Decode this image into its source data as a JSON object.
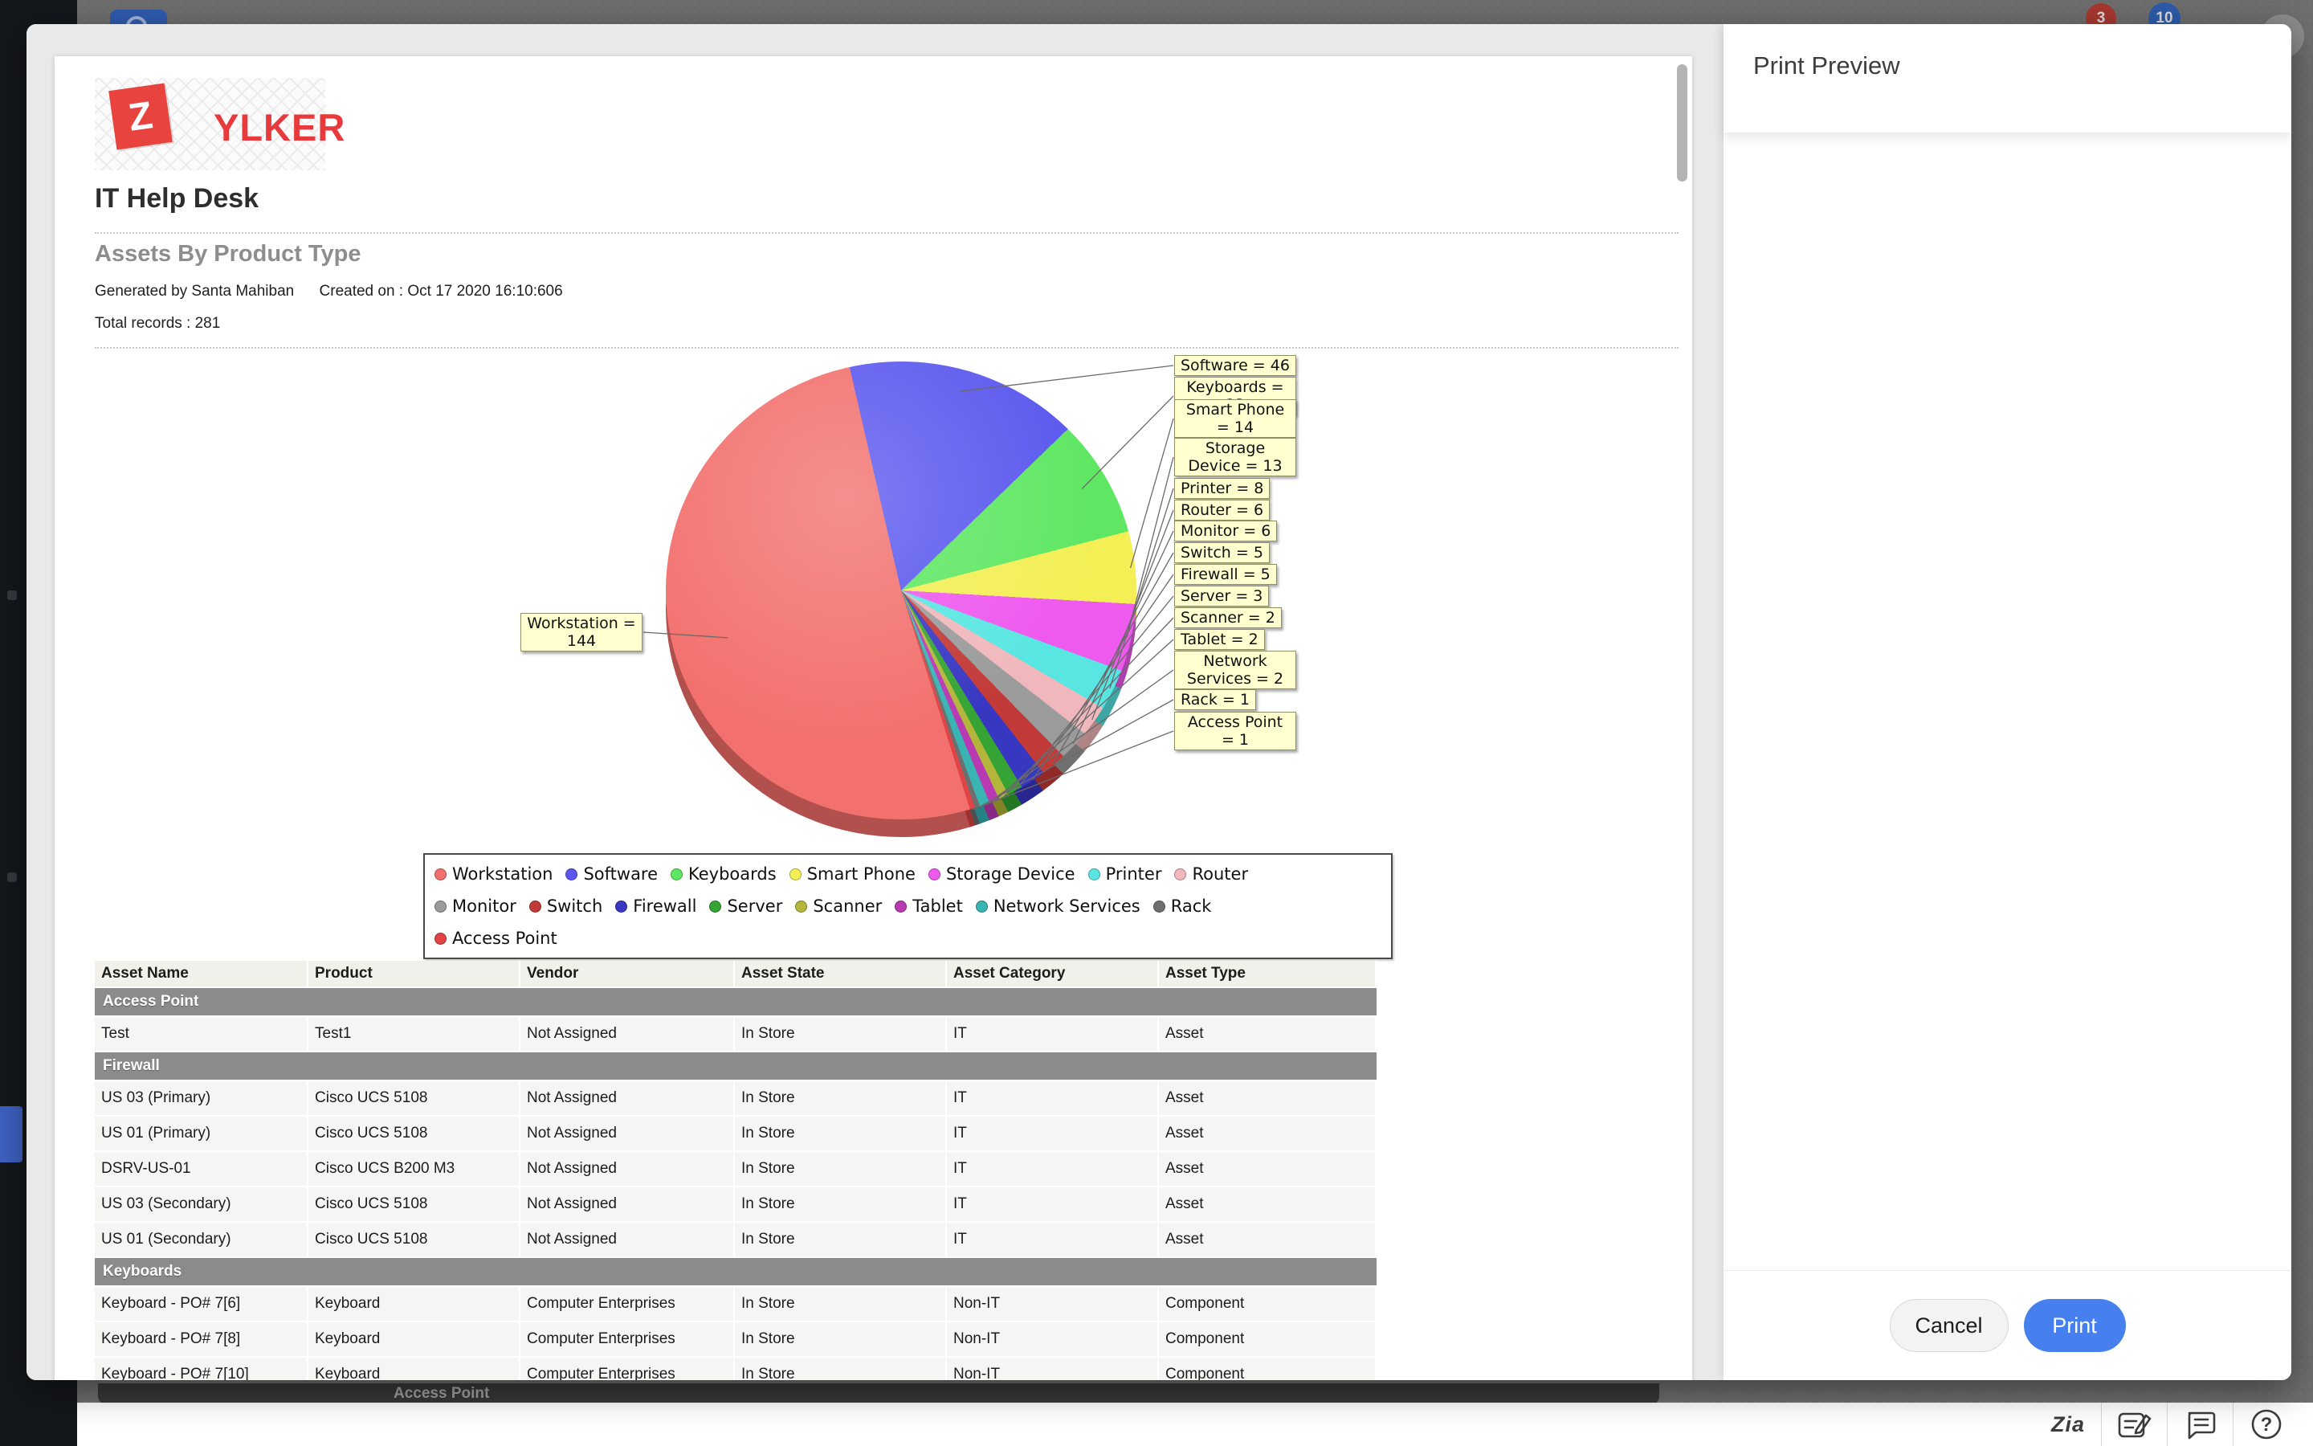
{
  "overlay": {
    "badge_red": "3",
    "badge_blue": "10",
    "sticky_group_header": "Access Point"
  },
  "print_panel": {
    "title": "Print Preview",
    "cancel_label": "Cancel",
    "print_label": "Print",
    "accent_color": "#4580ee"
  },
  "document": {
    "brand_letter": "Z",
    "brand_name": "YLKER",
    "app_title": "IT Help Desk",
    "report_title": "Assets By Product Type",
    "generated_by": "Generated by Santa Mahiban",
    "created_on": "Created on : Oct 17 2020 16:10:606",
    "total_records": "Total records : 281"
  },
  "chart_data": {
    "type": "pie",
    "title": "Assets By Product Type",
    "total": 281,
    "legend_position": "bottom-box",
    "start_angle_deg": -13,
    "series": [
      {
        "label": "Workstation",
        "value": 144,
        "color": "#f2706d"
      },
      {
        "label": "Software",
        "value": 46,
        "color": "#5a58ee"
      },
      {
        "label": "Keyboards",
        "value": 23,
        "color": "#5fe763"
      },
      {
        "label": "Smart Phone",
        "value": 14,
        "color": "#f3ef55"
      },
      {
        "label": "Storage Device",
        "value": 13,
        "color": "#ee59ee"
      },
      {
        "label": "Printer",
        "value": 8,
        "color": "#59e6e2"
      },
      {
        "label": "Router",
        "value": 6,
        "color": "#f0b8bc"
      },
      {
        "label": "Monitor",
        "value": 6,
        "color": "#9b9b9b"
      },
      {
        "label": "Switch",
        "value": 5,
        "color": "#c23a38"
      },
      {
        "label": "Firewall",
        "value": 5,
        "color": "#3837c2"
      },
      {
        "label": "Server",
        "value": 3,
        "color": "#36a435"
      },
      {
        "label": "Scanner",
        "value": 2,
        "color": "#b3b63b"
      },
      {
        "label": "Tablet",
        "value": 2,
        "color": "#b73ab3"
      },
      {
        "label": "Network Services",
        "value": 2,
        "color": "#3ab3b3"
      },
      {
        "label": "Rack",
        "value": 1,
        "color": "#6e6e6e"
      },
      {
        "label": "Access Point",
        "value": 1,
        "color": "#e04444"
      }
    ]
  },
  "table": {
    "columns": [
      "Asset Name",
      "Product",
      "Vendor",
      "Asset State",
      "Asset Category",
      "Asset Type"
    ],
    "groups": [
      {
        "name": "Access Point",
        "rows": [
          [
            "Test",
            "Test1",
            "Not Assigned",
            "In Store",
            "IT",
            "Asset"
          ]
        ]
      },
      {
        "name": "Firewall",
        "rows": [
          [
            "US 03 (Primary)",
            "Cisco UCS 5108",
            "Not Assigned",
            "In Store",
            "IT",
            "Asset"
          ],
          [
            "US 01 (Primary)",
            "Cisco UCS 5108",
            "Not Assigned",
            "In Store",
            "IT",
            "Asset"
          ],
          [
            "DSRV-US-01",
            "Cisco UCS B200 M3",
            "Not Assigned",
            "In Store",
            "IT",
            "Asset"
          ],
          [
            "US 03 (Secondary)",
            "Cisco UCS 5108",
            "Not Assigned",
            "In Store",
            "IT",
            "Asset"
          ],
          [
            "US 01 (Secondary)",
            "Cisco UCS 5108",
            "Not Assigned",
            "In Store",
            "IT",
            "Asset"
          ]
        ]
      },
      {
        "name": "Keyboards",
        "rows": [
          [
            "Keyboard - PO# 7[6]",
            "Keyboard",
            "Computer Enterprises",
            "In Store",
            "Non-IT",
            "Component"
          ],
          [
            "Keyboard - PO# 7[8]",
            "Keyboard",
            "Computer Enterprises",
            "In Store",
            "Non-IT",
            "Component"
          ],
          [
            "Keyboard - PO# 7[10]",
            "Keyboard",
            "Computer Enterprises",
            "In Store",
            "Non-IT",
            "Component"
          ]
        ]
      }
    ]
  },
  "toolbar": {
    "zia_label": "Zia",
    "help_glyph": "?"
  }
}
